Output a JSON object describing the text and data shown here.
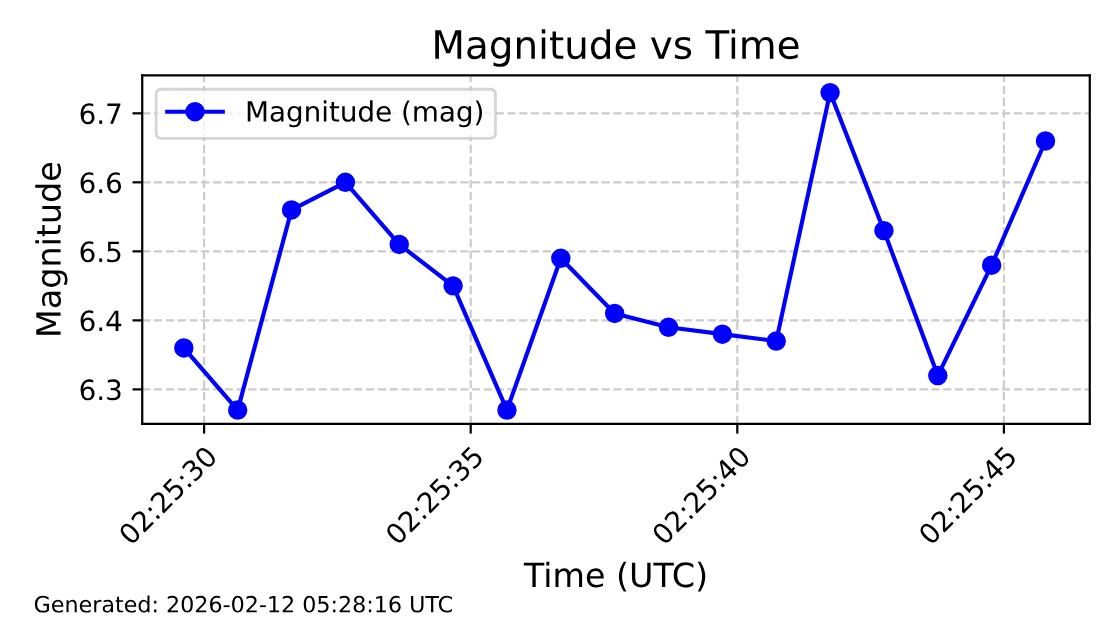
{
  "chart_data": {
    "type": "line",
    "title": "Magnitude vs Time",
    "xlabel": "Time (UTC)",
    "ylabel": "Magnitude",
    "x": [
      "2026-02-12T02:25:29.62",
      "2026-02-12T02:25:30.63",
      "2026-02-12T02:25:31.64",
      "2026-02-12T02:25:32.65",
      "2026-02-12T02:25:33.66",
      "2026-02-12T02:25:34.67",
      "2026-02-12T02:25:35.68",
      "2026-02-12T02:25:36.69",
      "2026-02-12T02:25:37.70",
      "2026-02-12T02:25:38.71",
      "2026-02-12T02:25:39.72",
      "2026-02-12T02:25:40.73",
      "2026-02-12T02:25:41.74",
      "2026-02-12T02:25:42.75",
      "2026-02-12T02:25:43.76",
      "2026-02-12T02:25:44.77",
      "2026-02-12T02:25:45.78"
    ],
    "series": [
      {
        "name": "Magnitude (mag)",
        "color": "#0000ff",
        "values": [
          6.36,
          6.27,
          6.56,
          6.6,
          6.51,
          6.45,
          6.27,
          6.49,
          6.41,
          6.39,
          6.38,
          6.37,
          6.73,
          6.53,
          6.32,
          6.48,
          6.66
        ]
      }
    ],
    "xlim": [
      "2026-02-12T02:25:28.84",
      "2026-02-12T02:25:46.61"
    ],
    "xticks": [
      {
        "value": "2026-02-12T02:25:30",
        "label": "02:25:30"
      },
      {
        "value": "2026-02-12T02:25:35",
        "label": "02:25:35"
      },
      {
        "value": "2026-02-12T02:25:40",
        "label": "02:25:40"
      },
      {
        "value": "2026-02-12T02:25:45",
        "label": "02:25:45"
      }
    ],
    "ylim": [
      6.25,
      6.755
    ],
    "yticks": [
      6.3,
      6.4,
      6.5,
      6.6,
      6.7
    ],
    "grid": true,
    "legend": "top left",
    "marker": "circle",
    "line_style": "solid",
    "annotations": [
      "Generated: 2026-02-12 05:28:16 UTC"
    ]
  }
}
